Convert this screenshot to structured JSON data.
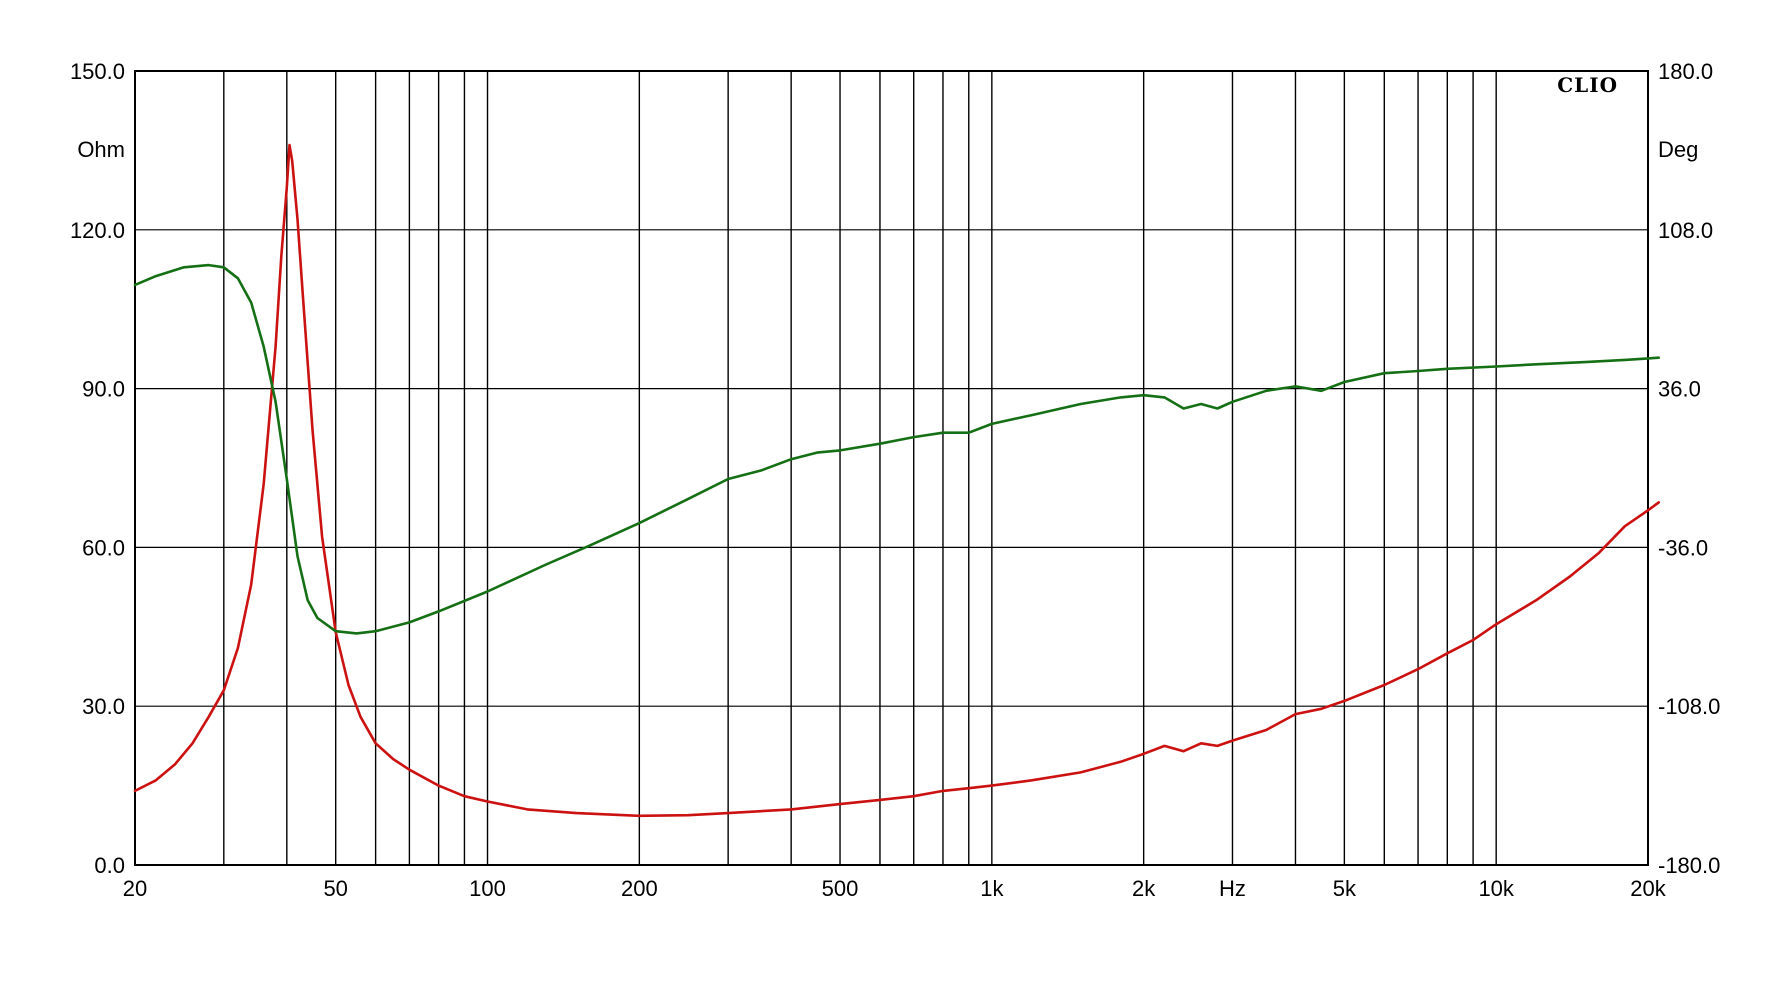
{
  "brand_label": "CLIO",
  "chart_data": {
    "type": "line",
    "title": "",
    "xlabel": "Hz",
    "ylabel_left": "Ohm",
    "ylabel_right": "Deg",
    "x_scale": "log",
    "xlim": [
      20,
      20000
    ],
    "ylim_left": [
      0,
      150
    ],
    "ylim_right": [
      -180,
      180
    ],
    "grid": true,
    "x_tick_labels": [
      {
        "value": 20,
        "label": "20"
      },
      {
        "value": 50,
        "label": "50"
      },
      {
        "value": 100,
        "label": "100"
      },
      {
        "value": 200,
        "label": "200"
      },
      {
        "value": 500,
        "label": "500"
      },
      {
        "value": 1000,
        "label": "1k"
      },
      {
        "value": 2000,
        "label": "2k"
      },
      {
        "value": 3000,
        "label": "Hz"
      },
      {
        "value": 5000,
        "label": "5k"
      },
      {
        "value": 10000,
        "label": "10k"
      },
      {
        "value": 20000,
        "label": "20k"
      }
    ],
    "x_grid_values": [
      30,
      40,
      50,
      60,
      70,
      80,
      90,
      100,
      200,
      300,
      400,
      500,
      600,
      700,
      800,
      900,
      1000,
      2000,
      3000,
      4000,
      5000,
      6000,
      7000,
      8000,
      9000,
      10000
    ],
    "y_left_ticks": [
      {
        "value": 150,
        "label": "150.0"
      },
      {
        "value": 120,
        "label": "120.0"
      },
      {
        "value": 90,
        "label": "90.0"
      },
      {
        "value": 60,
        "label": "60.0"
      },
      {
        "value": 30,
        "label": "30.0"
      },
      {
        "value": 0,
        "label": "0.0"
      }
    ],
    "y_right_ticks": [
      {
        "value": 180,
        "label": "180.0"
      },
      {
        "value": 108,
        "label": "108.0"
      },
      {
        "value": 36,
        "label": "36.0"
      },
      {
        "value": -36,
        "label": "-36.0"
      },
      {
        "value": -108,
        "label": "-108.0"
      },
      {
        "value": -180,
        "label": "-180.0"
      }
    ],
    "series": [
      {
        "axis": "left",
        "color": "#cc1111",
        "points": [
          [
            20,
            14
          ],
          [
            22,
            16
          ],
          [
            24,
            19
          ],
          [
            26,
            23
          ],
          [
            28,
            28
          ],
          [
            30,
            33
          ],
          [
            32,
            41
          ],
          [
            34,
            53
          ],
          [
            36,
            72
          ],
          [
            38,
            98
          ],
          [
            39,
            115
          ],
          [
            40,
            128
          ],
          [
            40.5,
            136
          ],
          [
            41,
            133
          ],
          [
            42,
            122
          ],
          [
            43,
            108
          ],
          [
            45,
            82
          ],
          [
            47,
            62
          ],
          [
            50,
            44
          ],
          [
            53,
            34
          ],
          [
            56,
            28
          ],
          [
            60,
            23
          ],
          [
            65,
            20
          ],
          [
            70,
            18
          ],
          [
            80,
            15
          ],
          [
            90,
            13
          ],
          [
            100,
            12
          ],
          [
            120,
            10.5
          ],
          [
            150,
            9.8
          ],
          [
            200,
            9.3
          ],
          [
            250,
            9.4
          ],
          [
            300,
            9.8
          ],
          [
            400,
            10.5
          ],
          [
            500,
            11.5
          ],
          [
            600,
            12.3
          ],
          [
            700,
            13
          ],
          [
            800,
            14
          ],
          [
            900,
            14.5
          ],
          [
            1000,
            15
          ],
          [
            1200,
            16
          ],
          [
            1500,
            17.5
          ],
          [
            1800,
            19.5
          ],
          [
            2000,
            21
          ],
          [
            2200,
            22.5
          ],
          [
            2400,
            21.5
          ],
          [
            2600,
            23
          ],
          [
            2800,
            22.5
          ],
          [
            3000,
            23.5
          ],
          [
            3500,
            25.5
          ],
          [
            4000,
            28.5
          ],
          [
            4500,
            29.5
          ],
          [
            5000,
            31
          ],
          [
            6000,
            34
          ],
          [
            7000,
            37
          ],
          [
            8000,
            40
          ],
          [
            9000,
            42.5
          ],
          [
            10000,
            45.5
          ],
          [
            12000,
            50
          ],
          [
            14000,
            54.5
          ],
          [
            16000,
            59
          ],
          [
            18000,
            64
          ],
          [
            20000,
            67
          ],
          [
            21000,
            68.5
          ]
        ]
      },
      {
        "axis": "right",
        "color": "#157015",
        "points": [
          [
            20,
            83
          ],
          [
            22,
            87
          ],
          [
            25,
            91
          ],
          [
            28,
            92
          ],
          [
            30,
            91
          ],
          [
            32,
            86
          ],
          [
            34,
            75
          ],
          [
            36,
            55
          ],
          [
            38,
            30
          ],
          [
            40,
            -5
          ],
          [
            42,
            -40
          ],
          [
            44,
            -60
          ],
          [
            46,
            -68
          ],
          [
            50,
            -74
          ],
          [
            55,
            -75
          ],
          [
            60,
            -74
          ],
          [
            70,
            -70
          ],
          [
            80,
            -65
          ],
          [
            100,
            -56
          ],
          [
            130,
            -44
          ],
          [
            160,
            -35
          ],
          [
            200,
            -25
          ],
          [
            250,
            -14
          ],
          [
            300,
            -5
          ],
          [
            350,
            -1
          ],
          [
            400,
            4
          ],
          [
            450,
            7
          ],
          [
            500,
            8
          ],
          [
            600,
            11
          ],
          [
            700,
            14
          ],
          [
            800,
            16
          ],
          [
            900,
            16
          ],
          [
            1000,
            20
          ],
          [
            1200,
            24
          ],
          [
            1500,
            29
          ],
          [
            1800,
            32
          ],
          [
            2000,
            33
          ],
          [
            2200,
            32
          ],
          [
            2400,
            27
          ],
          [
            2600,
            29
          ],
          [
            2800,
            27
          ],
          [
            3000,
            30
          ],
          [
            3500,
            35
          ],
          [
            4000,
            37
          ],
          [
            4500,
            35
          ],
          [
            5000,
            39
          ],
          [
            6000,
            43
          ],
          [
            7000,
            44
          ],
          [
            8000,
            45
          ],
          [
            10000,
            46
          ],
          [
            12000,
            47
          ],
          [
            15000,
            48
          ],
          [
            18000,
            49
          ],
          [
            21000,
            50
          ]
        ]
      }
    ]
  }
}
